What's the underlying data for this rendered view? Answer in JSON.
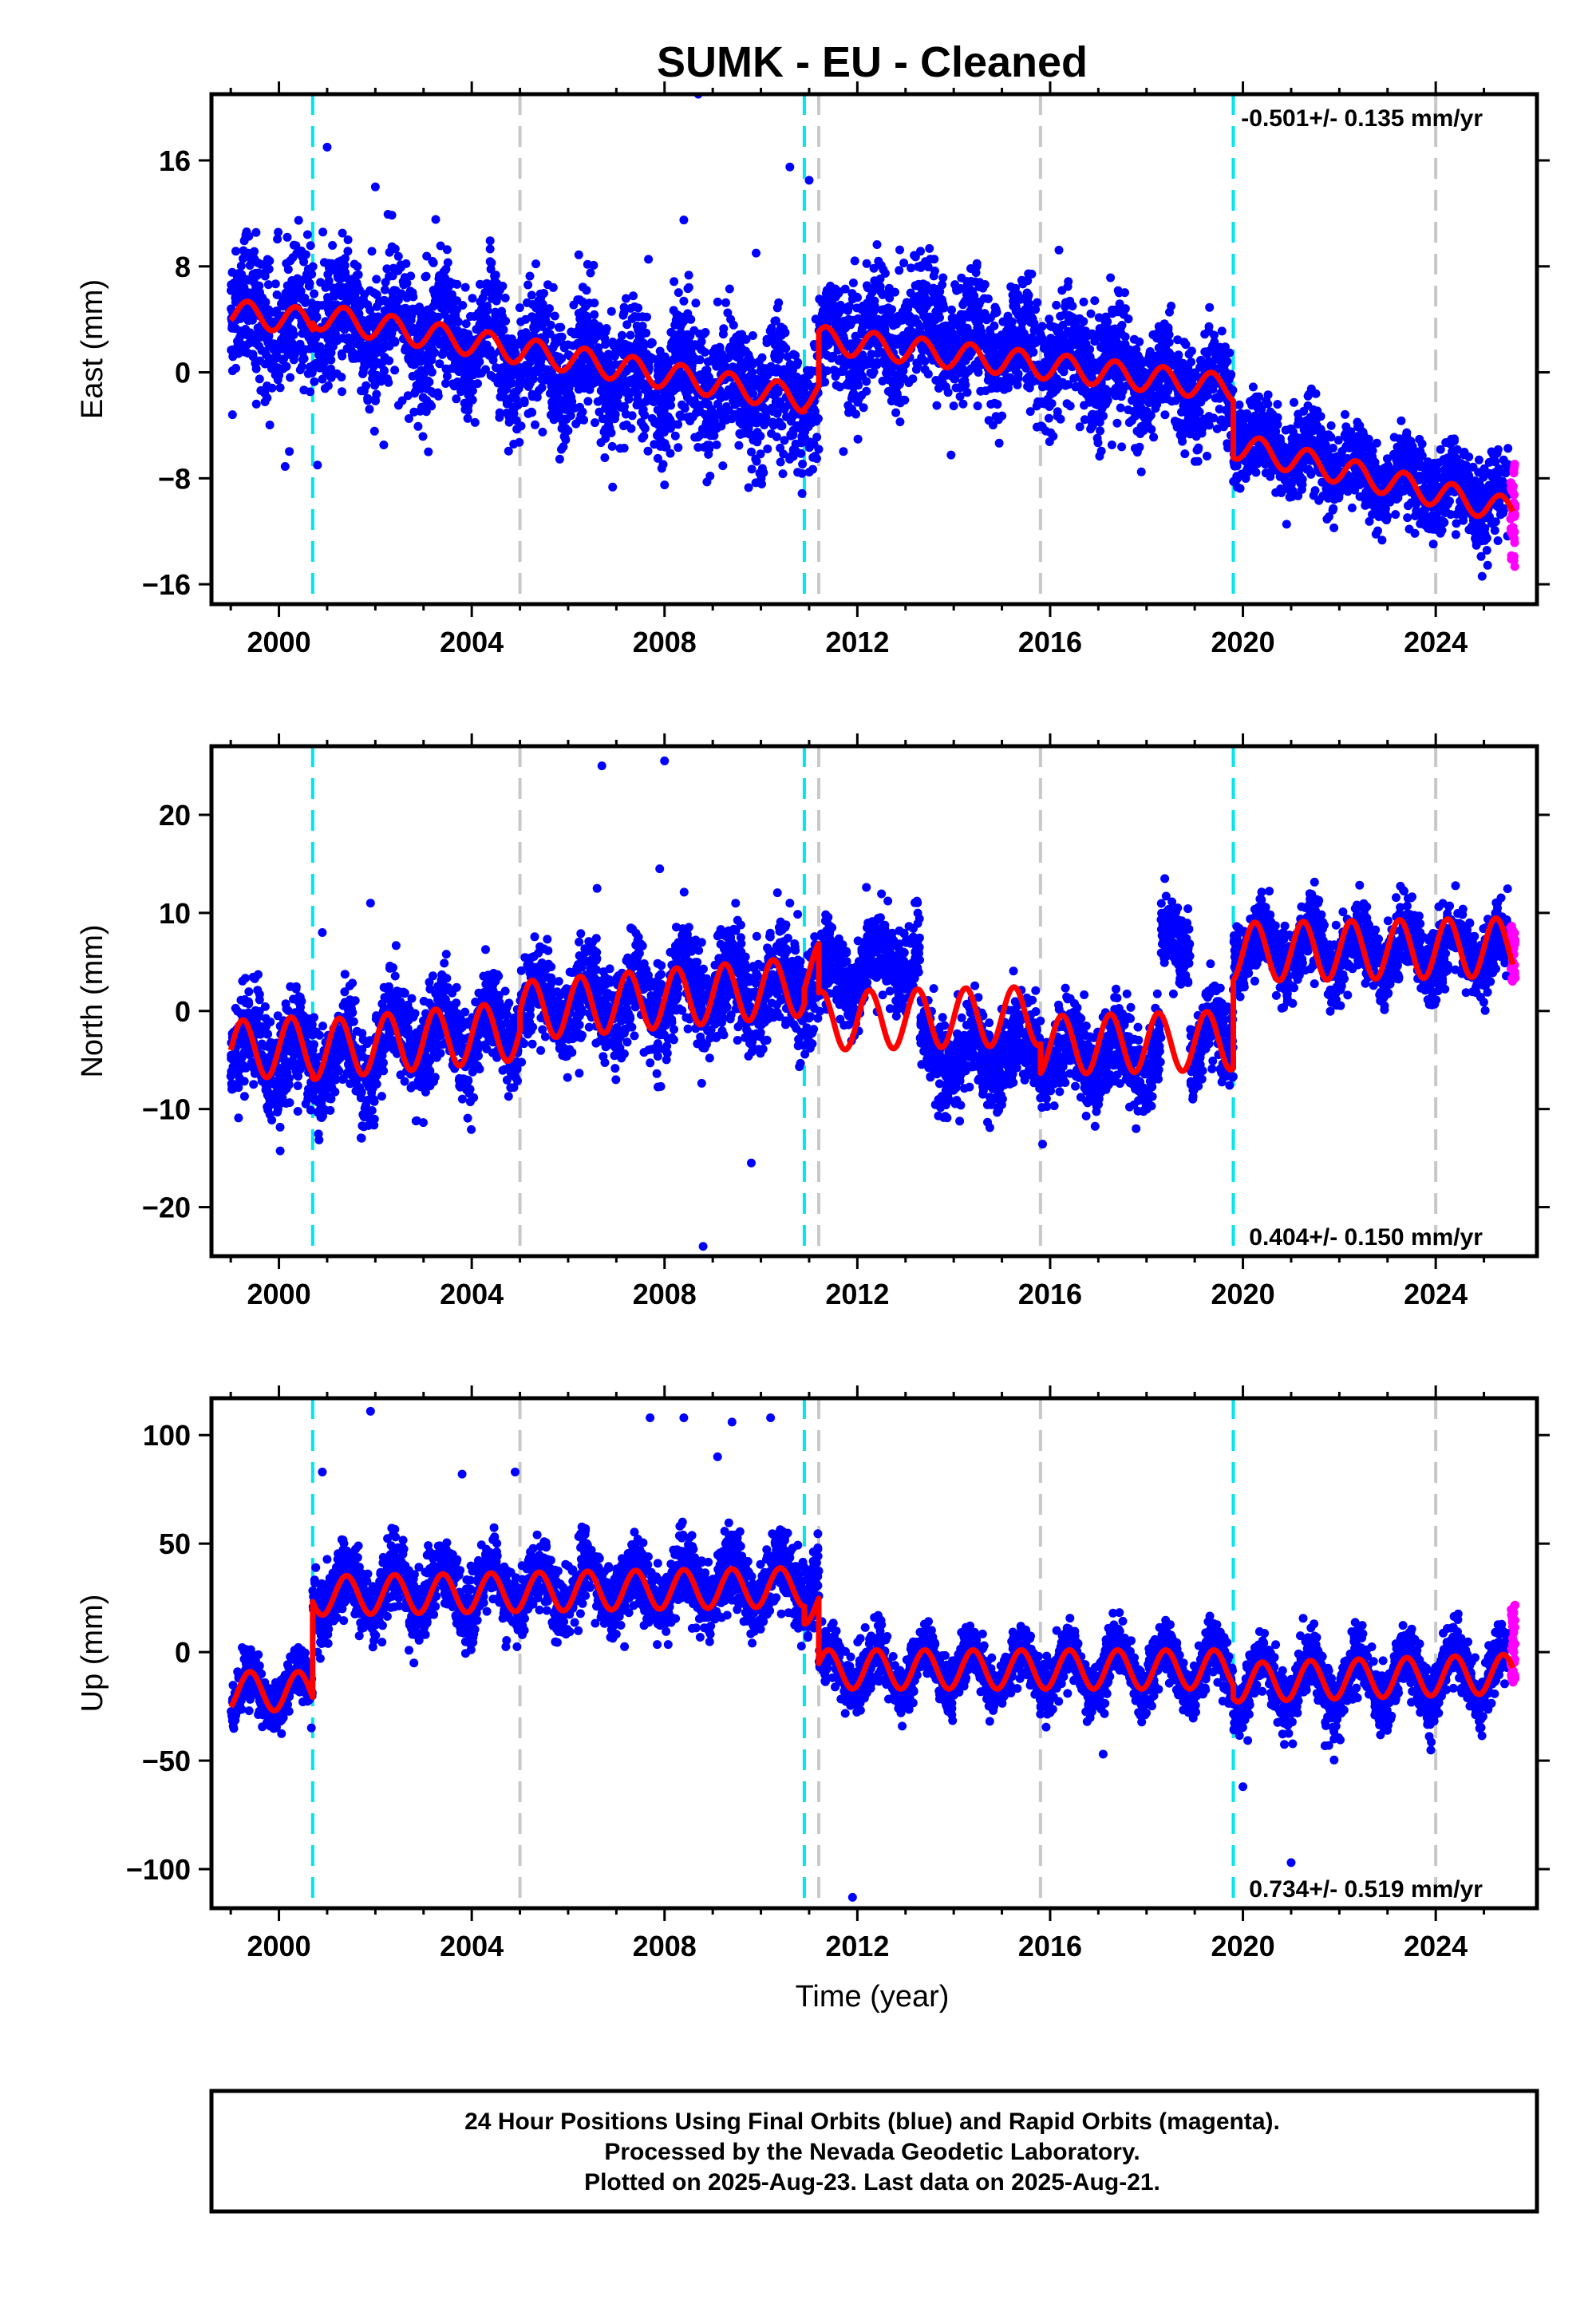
{
  "title": "SUMK  - EU - Cleaned",
  "xlabel": "Time (year)",
  "footer": {
    "line1": "24 Hour Positions Using Final Orbits (blue) and Rapid Orbits (magenta).",
    "line2": "Processed by the Nevada Geodetic Laboratory.",
    "line3": "Plotted on 2025-Aug-23. Last data on 2025-Aug-21."
  },
  "colors": {
    "final_orbits": "#0000ff",
    "rapid_orbits": "#ff00ff",
    "model": "#ff0000",
    "equipment_change": "#00e5ee",
    "other_event": "#c8c8c8"
  },
  "chart_data": [
    {
      "type": "scatter",
      "ylabel": "East (mm)",
      "rate_text": "-0.501+/- 0.135 mm/yr",
      "xlim": [
        1998.6,
        2026.1
      ],
      "ylim": [
        -17.5,
        21
      ],
      "xticks": [
        2000,
        2004,
        2008,
        2012,
        2016,
        2020,
        2024
      ],
      "yticks": [
        -16,
        -8,
        0,
        8,
        16
      ],
      "ytick_labels": [
        "−16",
        "−8",
        "0",
        "8",
        "16"
      ],
      "cyan_lines": [
        2000.7,
        2010.9,
        2019.8
      ],
      "gray_lines": [
        2005.0,
        2011.2,
        2015.8,
        2024.0
      ],
      "model": {
        "amp": 1.0,
        "phase": 0.1,
        "segments": [
          {
            "x": [
              1999.0,
              2000.7
            ],
            "y": [
              4.5,
              3.8
            ]
          },
          {
            "x": [
              2000.7,
              2010.9
            ],
            "y": [
              4.3,
              -2.0
            ]
          },
          {
            "x": [
              2010.9,
              2011.2
            ],
            "y": [
              -1.8,
              -1.6
            ]
          },
          {
            "x": [
              2011.2,
              2019.8
            ],
            "y": [
              2.5,
              -1.2
            ]
          },
          {
            "x": [
              2019.8,
              2025.6
            ],
            "y": [
              -5.5,
              -10.5
            ]
          }
        ]
      },
      "data_segments": [
        {
          "x": [
            1999.0,
            2000.7
          ],
          "y": [
            5.0,
            3.5
          ],
          "noise": 2.6,
          "amp": 1.5
        },
        {
          "x": [
            2000.7,
            2005.0
          ],
          "y": [
            4.5,
            1.5
          ],
          "noise": 2.4,
          "amp": 2.0
        },
        {
          "x": [
            2005.0,
            2011.2
          ],
          "y": [
            1.0,
            -2.0
          ],
          "noise": 2.4,
          "amp": 1.8
        },
        {
          "x": [
            2011.2,
            2013.0
          ],
          "y": [
            2.0,
            3.0
          ],
          "noise": 2.4,
          "amp": 1.5
        },
        {
          "x": [
            2013.0,
            2018.0
          ],
          "y": [
            3.5,
            -0.5
          ],
          "noise": 2.2,
          "amp": 1.5
        },
        {
          "x": [
            2018.0,
            2019.8
          ],
          "y": [
            -0.5,
            -1.5
          ],
          "noise": 1.8,
          "amp": 1.3
        },
        {
          "x": [
            2019.8,
            2025.5
          ],
          "y": [
            -5.0,
            -10.0
          ],
          "noise": 1.5,
          "amp": 1.1
        }
      ],
      "outliers": [
        [
          2008.7,
          21
        ],
        [
          2001.0,
          17
        ],
        [
          2010.6,
          15.5
        ],
        [
          2011.0,
          14.5
        ],
        [
          2008.4,
          11.5
        ],
        [
          2002.0,
          14.0
        ],
        [
          2009.9,
          9
        ],
        [
          2008.0,
          -8.5
        ],
        [
          2003.1,
          -6
        ],
        [
          2000.8,
          -7
        ]
      ],
      "rapid": {
        "x": [
          2025.55,
          2025.65
        ],
        "y": [
          -15,
          -6
        ]
      }
    },
    {
      "type": "scatter",
      "ylabel": "North (mm)",
      "rate_text": "0.404+/- 0.150 mm/yr",
      "xlim": [
        1998.6,
        2026.1
      ],
      "ylim": [
        -25,
        27
      ],
      "xticks": [
        2000,
        2004,
        2008,
        2012,
        2016,
        2020,
        2024
      ],
      "yticks": [
        -20,
        -10,
        0,
        10,
        20
      ],
      "ytick_labels": [
        "−20",
        "−10",
        "0",
        "10",
        "20"
      ],
      "cyan_lines": [
        2000.7,
        2010.9,
        2019.8
      ],
      "gray_lines": [
        2005.0,
        2011.2,
        2015.8,
        2024.0
      ],
      "model": {
        "amp": 3.0,
        "phase": 0.0,
        "segments": [
          {
            "x": [
              1999.0,
              2000.7
            ],
            "y": [
              -4.0,
              -3.5
            ]
          },
          {
            "x": [
              2000.7,
              2005.0
            ],
            "y": [
              -4.0,
              -2.0
            ]
          },
          {
            "x": [
              2005.0,
              2010.9
            ],
            "y": [
              0.0,
              2.5
            ]
          },
          {
            "x": [
              2010.9,
              2011.2
            ],
            "y": [
              4.0,
              4.0
            ]
          },
          {
            "x": [
              2011.2,
              2015.8
            ],
            "y": [
              -1.0,
              -0.5
            ]
          },
          {
            "x": [
              2015.8,
              2019.8
            ],
            "y": [
              -3.5,
              -3.0
            ]
          },
          {
            "x": [
              2019.8,
              2025.6
            ],
            "y": [
              6.0,
              6.5
            ]
          }
        ]
      },
      "data_segments": [
        {
          "x": [
            1999.0,
            2002.0
          ],
          "y": [
            -4.0,
            -5.5
          ],
          "noise": 2.5,
          "amp": 2.5
        },
        {
          "x": [
            2002.0,
            2005.0
          ],
          "y": [
            -3.0,
            -2.0
          ],
          "noise": 2.5,
          "amp": 2.5
        },
        {
          "x": [
            2005.0,
            2011.2
          ],
          "y": [
            0.5,
            3.0
          ],
          "noise": 2.5,
          "amp": 2.5
        },
        {
          "x": [
            2011.2,
            2013.3
          ],
          "y": [
            3.0,
            6.0
          ],
          "noise": 2.2,
          "amp": 2.0
        },
        {
          "x": [
            2013.3,
            2018.3
          ],
          "y": [
            -4.5,
            -4.5
          ],
          "noise": 2.2,
          "amp": 2.0
        },
        {
          "x": [
            2018.3,
            2018.9
          ],
          "y": [
            7.0,
            7.0
          ],
          "noise": 1.8,
          "amp": 1.0
        },
        {
          "x": [
            2018.9,
            2019.8
          ],
          "y": [
            -3.0,
            -3.0
          ],
          "noise": 2.0,
          "amp": 2.0
        },
        {
          "x": [
            2019.8,
            2025.5
          ],
          "y": [
            6.5,
            6.0
          ],
          "noise": 1.8,
          "amp": 2.2
        }
      ],
      "outliers": [
        [
          2006.7,
          25
        ],
        [
          2008.0,
          25.5
        ],
        [
          2007.9,
          14.5
        ],
        [
          2008.8,
          -24
        ],
        [
          2009.8,
          -15.5
        ],
        [
          2001.9,
          11
        ],
        [
          2006.6,
          12.5
        ],
        [
          2000.9,
          8
        ],
        [
          2010.6,
          11
        ]
      ],
      "rapid": {
        "x": [
          2025.55,
          2025.65
        ],
        "y": [
          3,
          9
        ]
      }
    },
    {
      "type": "scatter",
      "ylabel": "Up (mm)",
      "rate_text": "0.734+/- 0.519 mm/yr",
      "xlim": [
        1998.6,
        2026.1
      ],
      "ylim": [
        -118,
        117
      ],
      "xticks": [
        2000,
        2004,
        2008,
        2012,
        2016,
        2020,
        2024
      ],
      "yticks": [
        -100,
        -50,
        0,
        50,
        100
      ],
      "ytick_labels": [
        "−100",
        "−50",
        "0",
        "50",
        "100"
      ],
      "cyan_lines": [
        2000.7,
        2010.9,
        2019.8
      ],
      "gray_lines": [
        2005.0,
        2011.2,
        2015.8,
        2024.0
      ],
      "model": {
        "amp": 9.0,
        "phase": 0.15,
        "segments": [
          {
            "x": [
              1999.0,
              2000.7
            ],
            "y": [
              -18,
              -18
            ]
          },
          {
            "x": [
              2000.7,
              2010.9
            ],
            "y": [
              26,
              30
            ]
          },
          {
            "x": [
              2010.9,
              2011.2
            ],
            "y": [
              22,
              22
            ]
          },
          {
            "x": [
              2011.2,
              2019.8
            ],
            "y": [
              -8,
              -8
            ]
          },
          {
            "x": [
              2019.8,
              2025.6
            ],
            "y": [
              -14,
              -10
            ]
          }
        ]
      },
      "data_segments": [
        {
          "x": [
            1999.0,
            2000.7
          ],
          "y": [
            -20,
            -18
          ],
          "noise": 6,
          "amp": 10
        },
        {
          "x": [
            2000.7,
            2011.2
          ],
          "y": [
            28,
            32
          ],
          "noise": 8,
          "amp": 10
        },
        {
          "x": [
            2011.2,
            2019.8
          ],
          "y": [
            -8,
            -8
          ],
          "noise": 6,
          "amp": 10
        },
        {
          "x": [
            2019.8,
            2025.5
          ],
          "y": [
            -15,
            -10
          ],
          "noise": 7,
          "amp": 12
        }
      ],
      "outliers": [
        [
          2001.9,
          111
        ],
        [
          2007.7,
          108
        ],
        [
          2008.4,
          108
        ],
        [
          2009.4,
          106
        ],
        [
          2010.2,
          108
        ],
        [
          2004.9,
          83
        ],
        [
          2003.8,
          82
        ],
        [
          2000.9,
          83
        ],
        [
          2011.9,
          -113
        ],
        [
          2021.0,
          -97
        ],
        [
          2017.1,
          -47
        ],
        [
          2020.0,
          -62
        ],
        [
          2002.8,
          -5
        ],
        [
          2009.1,
          90
        ]
      ],
      "rapid": {
        "x": [
          2025.55,
          2025.65
        ],
        "y": [
          -15,
          22
        ]
      }
    }
  ]
}
